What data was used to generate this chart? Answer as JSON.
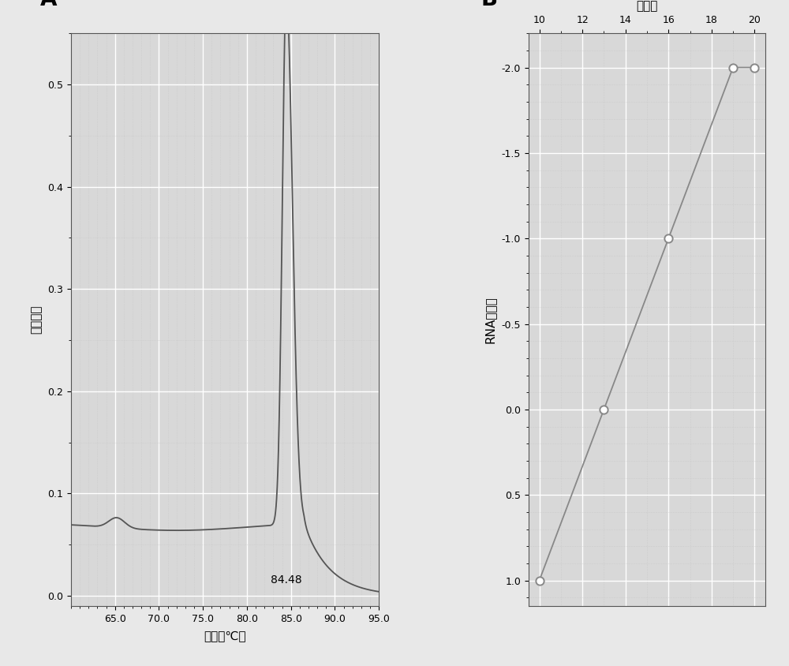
{
  "panel_A": {
    "label": "A",
    "xlabel": "温度（℃）",
    "ylabel": "荧光强度",
    "xlim": [
      60,
      95
    ],
    "ylim": [
      -0.01,
      0.55
    ],
    "xticks": [
      65.0,
      70.0,
      75.0,
      80.0,
      85.0,
      90.0,
      95.0
    ],
    "yticks": [
      0.0,
      0.1,
      0.2,
      0.3,
      0.4,
      0.5
    ],
    "peak_temp": 84.48,
    "peak_value": 0.52,
    "baseline": 0.072,
    "annotation": "84.48",
    "line_color": "#555555",
    "bg_color": "#d8d8d8",
    "grid_major_color": "#ffffff",
    "grid_minor_color": "#c8c8c8"
  },
  "panel_B": {
    "label": "B",
    "title": "循环数",
    "ylabel": "RNA拷贝数",
    "xlim": [
      9.5,
      20.5
    ],
    "ylim_bottom": 1.15,
    "ylim_top": -2.2,
    "xticks": [
      10,
      12,
      14,
      16,
      18,
      20
    ],
    "yticks": [
      -2.0,
      -1.5,
      -1.0,
      -0.5,
      0.0,
      0.5,
      1.0
    ],
    "ytick_labels": [
      "-2.0",
      "-1.5",
      "-1.0",
      "-0.5",
      "0.0",
      "0.5",
      "1.0"
    ],
    "data_x": [
      10,
      13,
      16,
      19,
      20
    ],
    "data_y": [
      1.0,
      0.0,
      -1.0,
      -2.0,
      -2.0
    ],
    "line_color": "#888888",
    "marker_edge_color": "#888888",
    "bg_color": "#d8d8d8",
    "grid_major_color": "#ffffff",
    "grid_minor_color": "#c4c4c4"
  },
  "fig_bg_color": "#e8e8e8"
}
